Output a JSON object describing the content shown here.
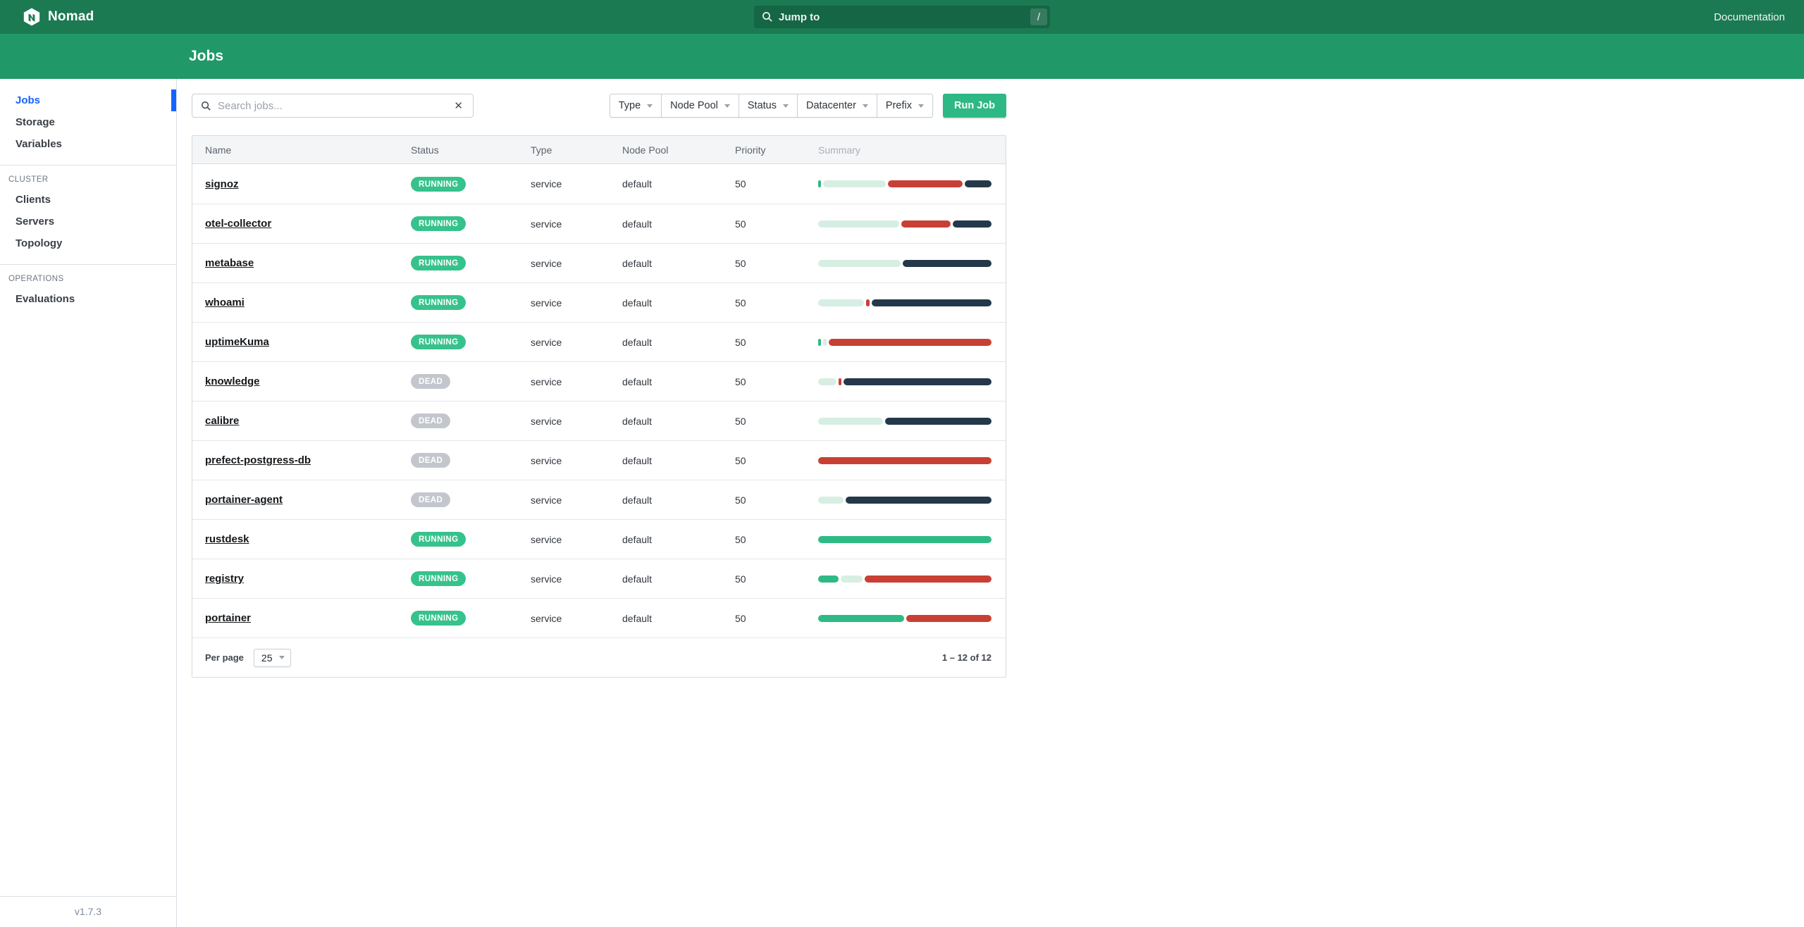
{
  "topnav": {
    "brand": "Nomad",
    "jump_to_placeholder": "Jump to",
    "shortcut_key": "/",
    "documentation_label": "Documentation"
  },
  "subheader": {
    "title": "Jobs"
  },
  "sidebar": {
    "items": [
      {
        "label": "Jobs",
        "active": true
      },
      {
        "label": "Storage",
        "active": false
      },
      {
        "label": "Variables",
        "active": false
      }
    ],
    "sections": [
      {
        "label": "CLUSTER",
        "items": [
          "Clients",
          "Servers",
          "Topology"
        ]
      },
      {
        "label": "OPERATIONS",
        "items": [
          "Evaluations"
        ]
      }
    ],
    "version": "v1.7.3"
  },
  "controls": {
    "search_placeholder": "Search jobs...",
    "clear_icon": "✕",
    "filters": [
      "Type",
      "Node Pool",
      "Status",
      "Datacenter",
      "Prefix"
    ],
    "run_job_label": "Run Job"
  },
  "table": {
    "columns": [
      "Name",
      "Status",
      "Type",
      "Node Pool",
      "Priority",
      "Summary"
    ],
    "rows": [
      {
        "name": "signoz",
        "status": "RUNNING",
        "type": "service",
        "node_pool": "default",
        "priority": "50",
        "summary": [
          {
            "status": "running",
            "pct": 1
          },
          {
            "status": "starting",
            "pct": 38
          },
          {
            "status": "failed",
            "pct": 45
          },
          {
            "status": "complete",
            "pct": 16
          }
        ]
      },
      {
        "name": "otel-collector",
        "status": "RUNNING",
        "type": "service",
        "node_pool": "default",
        "priority": "50",
        "summary": [
          {
            "status": "starting",
            "pct": 48
          },
          {
            "status": "failed",
            "pct": 29
          },
          {
            "status": "complete",
            "pct": 23
          }
        ]
      },
      {
        "name": "metabase",
        "status": "RUNNING",
        "type": "service",
        "node_pool": "default",
        "priority": "50",
        "summary": [
          {
            "status": "starting",
            "pct": 48
          },
          {
            "status": "complete",
            "pct": 52
          }
        ]
      },
      {
        "name": "whoami",
        "status": "RUNNING",
        "type": "service",
        "node_pool": "default",
        "priority": "50",
        "summary": [
          {
            "status": "starting",
            "pct": 27
          },
          {
            "status": "failed",
            "pct": 2
          },
          {
            "status": "complete",
            "pct": 71
          }
        ]
      },
      {
        "name": "uptimeKuma",
        "status": "RUNNING",
        "type": "service",
        "node_pool": "default",
        "priority": "50",
        "summary": [
          {
            "status": "running",
            "pct": 1
          },
          {
            "status": "starting",
            "pct": 2
          },
          {
            "status": "failed",
            "pct": 97
          }
        ]
      },
      {
        "name": "knowledge",
        "status": "DEAD",
        "type": "service",
        "node_pool": "default",
        "priority": "50",
        "summary": [
          {
            "status": "starting",
            "pct": 11
          },
          {
            "status": "failed",
            "pct": 1
          },
          {
            "status": "complete",
            "pct": 88
          }
        ]
      },
      {
        "name": "calibre",
        "status": "DEAD",
        "type": "service",
        "node_pool": "default",
        "priority": "50",
        "summary": [
          {
            "status": "starting",
            "pct": 38
          },
          {
            "status": "complete",
            "pct": 62
          }
        ]
      },
      {
        "name": "prefect-postgress-db",
        "status": "DEAD",
        "type": "service",
        "node_pool": "default",
        "priority": "50",
        "summary": [
          {
            "status": "failed",
            "pct": 100
          }
        ]
      },
      {
        "name": "portainer-agent",
        "status": "DEAD",
        "type": "service",
        "node_pool": "default",
        "priority": "50",
        "summary": [
          {
            "status": "starting",
            "pct": 15
          },
          {
            "status": "complete",
            "pct": 85
          }
        ]
      },
      {
        "name": "rustdesk",
        "status": "RUNNING",
        "type": "service",
        "node_pool": "default",
        "priority": "50",
        "summary": [
          {
            "status": "running",
            "pct": 100
          }
        ]
      },
      {
        "name": "registry",
        "status": "RUNNING",
        "type": "service",
        "node_pool": "default",
        "priority": "50",
        "summary": [
          {
            "status": "running",
            "pct": 12
          },
          {
            "status": "starting",
            "pct": 13
          },
          {
            "status": "failed",
            "pct": 75
          }
        ]
      },
      {
        "name": "portainer",
        "status": "RUNNING",
        "type": "service",
        "node_pool": "default",
        "priority": "50",
        "summary": [
          {
            "status": "running",
            "pct": 50
          },
          {
            "status": "failed",
            "pct": 50
          }
        ]
      }
    ]
  },
  "pagination": {
    "per_page_label": "Per page",
    "per_page_value": "25",
    "range_text": "1 – 12 of 12"
  },
  "colors": {
    "topnav_bg": "#1b7a52",
    "subheader_bg": "#219868",
    "active_link": "#1563ff",
    "badge_running": "#36c28b",
    "badge_dead": "#c3c7cd",
    "run_job_button": "#2eb885",
    "segment": {
      "running": "#2eba84",
      "starting": "#d7eee3",
      "failed": "#c84034",
      "complete": "#24384a"
    }
  }
}
